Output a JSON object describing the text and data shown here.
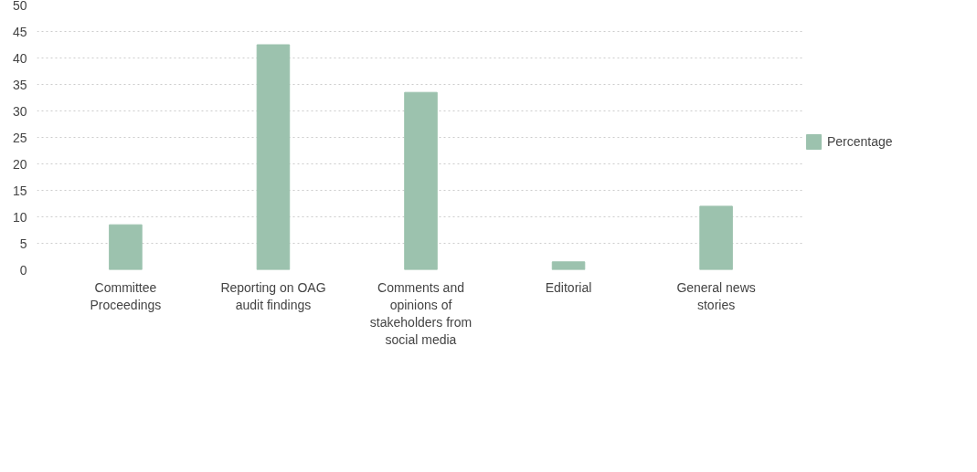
{
  "chart_data": {
    "type": "bar",
    "categories": [
      "Committee Proceedings",
      "Reporting on OAG audit findings",
      "Comments and opinions of stakeholders from social media",
      "Editorial",
      "General news stories"
    ],
    "series": [
      {
        "name": "Percentage",
        "color": "#9cc2ae",
        "values": [
          8.5,
          42.5,
          33.5,
          1.5,
          12
        ]
      }
    ],
    "ylim": [
      0,
      50
    ],
    "yticks": [
      0,
      5,
      10,
      15,
      20,
      25,
      30,
      35,
      40,
      45,
      50
    ],
    "grid": "y",
    "legend": "right"
  }
}
